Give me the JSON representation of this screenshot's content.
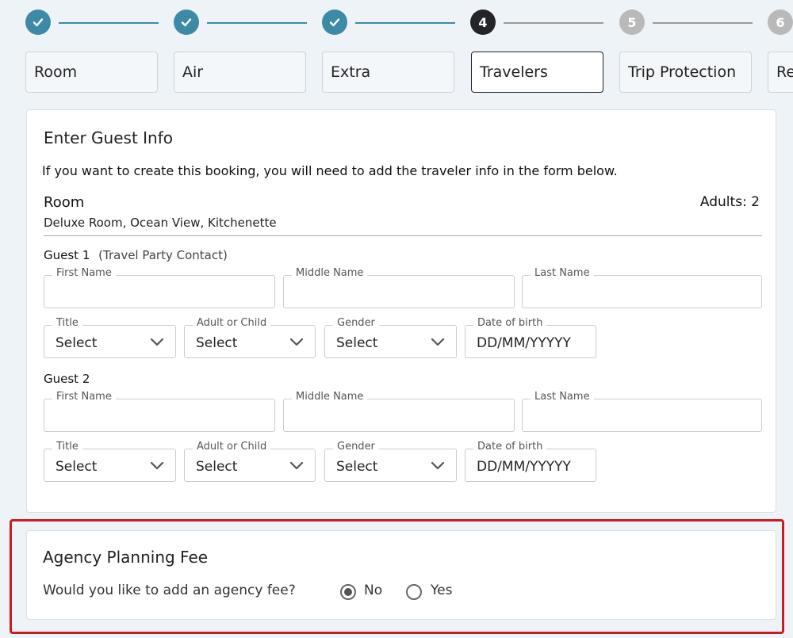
{
  "stepper": {
    "steps": [
      {
        "number": "",
        "status": "done"
      },
      {
        "number": "",
        "status": "done"
      },
      {
        "number": "",
        "status": "done"
      },
      {
        "number": "4",
        "status": "active"
      },
      {
        "number": "5",
        "status": "todo"
      },
      {
        "number": "6",
        "status": "todo"
      }
    ],
    "tabs": [
      {
        "label": "Room"
      },
      {
        "label": "Air"
      },
      {
        "label": "Extra"
      },
      {
        "label": "Travelers"
      },
      {
        "label": "Trip Protection"
      },
      {
        "label": "Re"
      }
    ],
    "colors": {
      "done": "#3d8aa6",
      "active": "#222427",
      "todo": "#b9b9b9"
    }
  },
  "guest_card": {
    "title": "Enter Guest Info",
    "intro": "If you want to create this booking, you will need to add the traveler info in the form below.",
    "room_heading": "Room",
    "room_type": "Deluxe Room, Ocean View, Kitchenette",
    "adults": "Adults: 2",
    "guests": [
      {
        "heading": "Guest 1",
        "note": "(Travel Party Contact)",
        "first_name": {
          "label": "First Name",
          "value": ""
        },
        "middle_name": {
          "label": "Middle Name",
          "value": ""
        },
        "last_name": {
          "label": "Last Name",
          "value": ""
        },
        "title": {
          "label": "Title",
          "value": "Select"
        },
        "adult_or_child": {
          "label": "Adult or Child",
          "value": "Select"
        },
        "gender": {
          "label": "Gender",
          "value": "Select"
        },
        "dob": {
          "label": "Date of birth",
          "value": "DD/MM/YYYYY"
        }
      },
      {
        "heading": "Guest 2",
        "note": "",
        "first_name": {
          "label": "First Name",
          "value": ""
        },
        "middle_name": {
          "label": "Middle Name",
          "value": ""
        },
        "last_name": {
          "label": "Last Name",
          "value": ""
        },
        "title": {
          "label": "Title",
          "value": "Select"
        },
        "adult_or_child": {
          "label": "Adult or Child",
          "value": "Select"
        },
        "gender": {
          "label": "Gender",
          "value": "Select"
        },
        "dob": {
          "label": "Date of birth",
          "value": "DD/MM/YYYYY"
        }
      }
    ]
  },
  "fee_card": {
    "title": "Agency Planning Fee",
    "question": "Would you like to add an agency fee?",
    "options": [
      {
        "label": "No",
        "selected": true
      },
      {
        "label": "Yes",
        "selected": false
      }
    ],
    "highlight_color": "#cc1c23"
  }
}
